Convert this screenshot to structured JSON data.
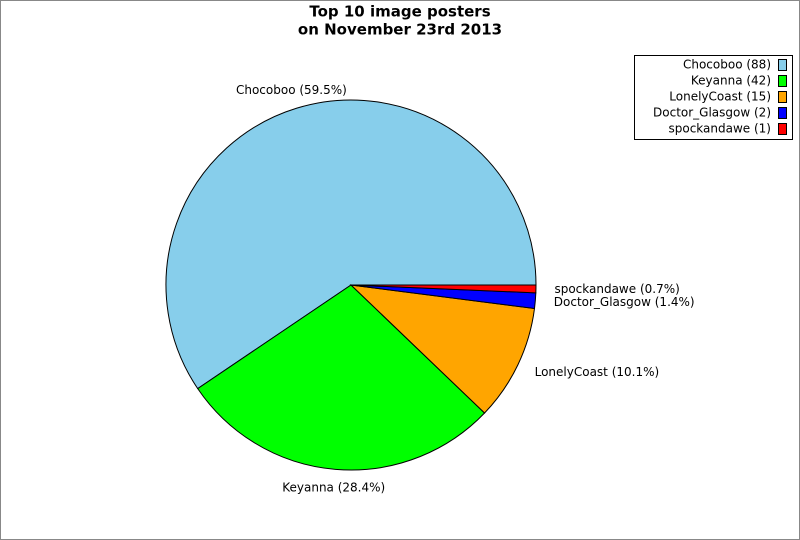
{
  "chart_data": {
    "type": "pie",
    "title": [
      "Top 10 image posters",
      "on November 23rd 2013"
    ],
    "categories": [
      "Chocoboo",
      "Keyanna",
      "LonelyCoast",
      "Doctor_Glasgow",
      "spockandawe"
    ],
    "values": [
      88,
      42,
      15,
      2,
      1
    ],
    "colors": [
      "#87ceeb",
      "#00ff00",
      "#ffa500",
      "#0000ff",
      "#ff0000"
    ],
    "slice_labels": [
      "Chocoboo (59.5%)",
      "Keyanna (28.4%)",
      "LonelyCoast (10.1%)",
      "Doctor_Glasgow (1.4%)",
      "spockandawe (0.7%)"
    ],
    "legend_labels": [
      "Chocoboo (88)",
      "Keyanna (42)",
      "LonelyCoast (15)",
      "Doctor_Glasgow (2)",
      "spockandawe (1)"
    ],
    "legend_position": "upper right"
  }
}
